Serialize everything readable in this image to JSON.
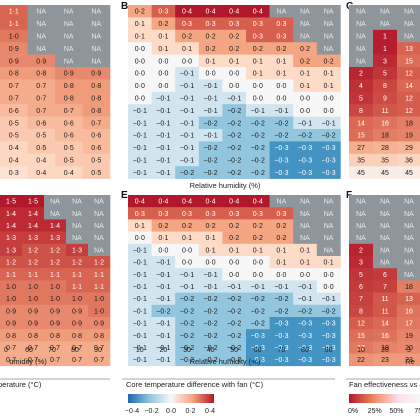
{
  "panel_letters": [
    "B",
    "C",
    "E",
    "F"
  ],
  "axis_titles": {
    "top_center": "Relative humidity (%)",
    "bottom_left": "umidity (%)",
    "bottom_center": "Relative humidity (%)",
    "bottom_right": "Re",
    "left_colorbar": "perature (°C)",
    "center_colorbar": "Core temperature difference with fan (°C)",
    "right_colorbar": "Fan effectiveness vs a"
  },
  "x_ticks_center": [
    "10",
    "20",
    "30",
    "40",
    "50",
    "60",
    "70",
    "80",
    "90"
  ],
  "x_ticks_left": [
    "0",
    "60",
    "70",
    "80",
    "90"
  ],
  "x_ticks_right": [
    "10",
    "20",
    "3"
  ],
  "center_colorbar_ticks": [
    "−0·4",
    "−0·2",
    "0·0",
    "0·2",
    "0·4"
  ],
  "right_colorbar_ticks": [
    "0%",
    "25%",
    "50%",
    "75"
  ],
  "colors": {
    "na": "#8e969c",
    "pos_max": "#b2182b",
    "neg_max": "#2166ac",
    "neutral": "#f7f7f7"
  },
  "chart_data": [
    {
      "panel": "A (partial)",
      "type": "heatmap",
      "rows": [
        [
          "1·1",
          "NA",
          "NA",
          "NA"
        ],
        [
          "1·1",
          "NA",
          "NA",
          "NA"
        ],
        [
          "1·0",
          "NA",
          "NA",
          "NA"
        ],
        [
          "0·9",
          "NA",
          "NA",
          "NA"
        ],
        [
          "0·9",
          "0·9",
          "NA",
          "NA"
        ],
        [
          "0·8",
          "0·8",
          "0·9",
          "0·9"
        ],
        [
          "0·7",
          "0·7",
          "0·8",
          "0·8"
        ],
        [
          "0·7",
          "0·7",
          "0·8",
          "0·8"
        ],
        [
          "0·6",
          "0·7",
          "0·7",
          "0·8"
        ],
        [
          "0·5",
          "0·6",
          "0·6",
          "0·7"
        ],
        [
          "0·5",
          "0·5",
          "0·6",
          "0·6"
        ],
        [
          "0·4",
          "0·5",
          "0·5",
          "0·6"
        ],
        [
          "0·4",
          "0·4",
          "0·5",
          "0·5"
        ],
        [
          "0·3",
          "0·4",
          "0·4",
          "0·5"
        ]
      ]
    },
    {
      "panel": "B",
      "type": "heatmap",
      "x": [
        "10",
        "20",
        "30",
        "40",
        "50",
        "60",
        "70",
        "80",
        "90"
      ],
      "rows": [
        [
          "0·2",
          "0·3",
          "0·4",
          "0·4",
          "0·4",
          "0·4",
          "NA",
          "NA",
          "NA"
        ],
        [
          "0·1",
          "0·2",
          "0·3",
          "0·3",
          "0·3",
          "0·3",
          "0·3",
          "NA",
          "NA"
        ],
        [
          "0·1",
          "0·1",
          "0·2",
          "0·2",
          "0·2",
          "0·3",
          "0·3",
          "NA",
          "NA"
        ],
        [
          "0·0",
          "0·1",
          "0·1",
          "0·2",
          "0·2",
          "0·2",
          "0·2",
          "0·2",
          "NA"
        ],
        [
          "0·0",
          "0·0",
          "0·0",
          "0·1",
          "0·1",
          "0·1",
          "0·1",
          "0·2",
          "0·2"
        ],
        [
          "0·0",
          "0·0",
          "−0·1",
          "0·0",
          "0·0",
          "0·1",
          "0·1",
          "0·1",
          "0·1"
        ],
        [
          "0·0",
          "0·0",
          "−0·1",
          "−0·1",
          "0·0",
          "0·0",
          "0·0",
          "0·1",
          "0·1"
        ],
        [
          "0·0",
          "−0·1",
          "−0·1",
          "−0·1",
          "−0·1",
          "0·0",
          "0·0",
          "0·0",
          "0·0"
        ],
        [
          "−0·1",
          "−0·1",
          "−0·1",
          "−0·1",
          "−0·2",
          "−0·1",
          "−0·1",
          "0·0",
          "0·0"
        ],
        [
          "−0·1",
          "−0·1",
          "−0·1",
          "−0·2",
          "−0·2",
          "−0·2",
          "−0·2",
          "−0·1",
          "−0·1"
        ],
        [
          "−0·1",
          "−0·1",
          "−0·1",
          "−0·1",
          "−0·2",
          "−0·2",
          "−0·2",
          "−0·2",
          "−0·2"
        ],
        [
          "−0·1",
          "−0·1",
          "−0·1",
          "−0·2",
          "−0·2",
          "−0·2",
          "−0·3",
          "−0·3",
          "−0·3"
        ],
        [
          "−0·1",
          "−0·1",
          "−0·1",
          "−0·2",
          "−0·2",
          "−0·2",
          "−0·3",
          "−0·3",
          "−0·3"
        ],
        [
          "−0·1",
          "−0·1",
          "−0·2",
          "−0·2",
          "−0·2",
          "−0·2",
          "−0·3",
          "−0·3",
          "−0·3"
        ]
      ]
    },
    {
      "panel": "C (partial)",
      "type": "heatmap",
      "rows": [
        [
          "NA",
          "NA",
          "NA"
        ],
        [
          "NA",
          "NA",
          "NA"
        ],
        [
          "NA",
          "1",
          "NA"
        ],
        [
          "NA",
          "1",
          "13"
        ],
        [
          "NA",
          "3",
          "15"
        ],
        [
          "2",
          "5",
          "12"
        ],
        [
          "4",
          "8",
          "14"
        ],
        [
          "5",
          "9",
          "12"
        ],
        [
          "8",
          "11",
          "12"
        ],
        [
          "14",
          "16",
          "18"
        ],
        [
          "15",
          "18",
          "19"
        ],
        [
          "27",
          "28",
          "29"
        ],
        [
          "35",
          "35",
          "36"
        ],
        [
          "45",
          "45",
          "45"
        ]
      ]
    },
    {
      "panel": "D (partial)",
      "type": "heatmap",
      "rows": [
        [
          "1·5",
          "1·5",
          "NA",
          "NA",
          "NA"
        ],
        [
          "1·4",
          "1·4",
          "NA",
          "NA",
          "NA"
        ],
        [
          "1·4",
          "1·4",
          "1·4",
          "NA",
          "NA"
        ],
        [
          "1·3",
          "1·3",
          "1·3",
          "NA",
          "NA"
        ],
        [
          "1·3",
          "1·2",
          "1·2",
          "1·3",
          "NA"
        ],
        [
          "1·2",
          "1·2",
          "1·2",
          "1·2",
          "1·2"
        ],
        [
          "1·1",
          "1·1",
          "1·1",
          "1·1",
          "1·1"
        ],
        [
          "1·0",
          "1·0",
          "1·0",
          "1·1",
          "1·1"
        ],
        [
          "1·0",
          "1·0",
          "1·0",
          "1·0",
          "1·0"
        ],
        [
          "0·9",
          "0·9",
          "0·9",
          "0·9",
          "1·0"
        ],
        [
          "0·9",
          "0·9",
          "0·9",
          "0·9",
          "0·9"
        ],
        [
          "0·8",
          "0·8",
          "0·8",
          "0·8",
          "0·8"
        ],
        [
          "0·7",
          "0·7",
          "0·7",
          "0·7",
          "0·7"
        ],
        [
          "0·7",
          "0·7",
          "0·7",
          "0·7",
          "0·7"
        ]
      ]
    },
    {
      "panel": "E",
      "type": "heatmap",
      "x": [
        "10",
        "20",
        "30",
        "40",
        "50",
        "60",
        "70",
        "80",
        "90"
      ],
      "rows": [
        [
          "0·4",
          "0·4",
          "0·4",
          "0·4",
          "0·4",
          "0·4",
          "NA",
          "NA",
          "NA"
        ],
        [
          "0·3",
          "0·3",
          "0·3",
          "0·3",
          "0·3",
          "0·3",
          "0·3",
          "NA",
          "NA"
        ],
        [
          "0·1",
          "0·2",
          "0·2",
          "0·2",
          "0·2",
          "0·2",
          "0·2",
          "NA",
          "NA"
        ],
        [
          "0·0",
          "0·1",
          "0·1",
          "0·1",
          "0·2",
          "0·2",
          "0·2",
          "NA",
          "NA"
        ],
        [
          "−0·1",
          "0·0",
          "0·0",
          "0·1",
          "0·1",
          "0·1",
          "0·1",
          "0·1",
          "NA"
        ],
        [
          "−0·1",
          "−0·1",
          "0·0",
          "0·0",
          "0·0",
          "0·0",
          "0·1",
          "0·1",
          "0·1"
        ],
        [
          "−0·1",
          "−0·1",
          "−0·1",
          "−0·1",
          "0·0",
          "0·0",
          "0·0",
          "0·0",
          "0·0"
        ],
        [
          "−0·1",
          "−0·1",
          "−0·1",
          "−0·1",
          "−0·1",
          "−0·1",
          "−0·1",
          "−0·1",
          "0·0"
        ],
        [
          "−0·1",
          "−0·1",
          "−0·2",
          "−0·2",
          "−0·2",
          "−0·2",
          "−0·2",
          "−0·1",
          "−0·1"
        ],
        [
          "−0·1",
          "−0·2",
          "−0·2",
          "−0·2",
          "−0·2",
          "−0·2",
          "−0·2",
          "−0·2",
          "−0·2"
        ],
        [
          "−0·1",
          "−0·1",
          "−0·2",
          "−0·2",
          "−0·2",
          "−0·2",
          "−0·3",
          "−0·3",
          "−0·3"
        ],
        [
          "−0·1",
          "−0·1",
          "−0·2",
          "−0·2",
          "−0·2",
          "−0·3",
          "−0·3",
          "−0·3",
          "−0·3"
        ],
        [
          "−0·1",
          "−0·1",
          "−0·2",
          "−0·2",
          "−0·2",
          "−0·3",
          "−0·3",
          "−0·3",
          "−0·3"
        ],
        [
          "−0·1",
          "−0·1",
          "−0·2",
          "−0·2",
          "−0·2",
          "−0·3",
          "−0·3",
          "−0·3",
          "−0·3"
        ]
      ]
    },
    {
      "panel": "F (partial)",
      "type": "heatmap",
      "rows": [
        [
          "NA",
          "NA",
          "NA"
        ],
        [
          "NA",
          "NA",
          "NA"
        ],
        [
          "NA",
          "NA",
          "NA"
        ],
        [
          "NA",
          "NA",
          "NA"
        ],
        [
          "2",
          "NA",
          "NA"
        ],
        [
          "3",
          "NA",
          "NA"
        ],
        [
          "5",
          "6",
          "NA"
        ],
        [
          "6",
          "7",
          "18"
        ],
        [
          "7",
          "11",
          "13"
        ],
        [
          "8",
          "11",
          "16"
        ],
        [
          "12",
          "14",
          "17"
        ],
        [
          "15",
          "16",
          "19"
        ],
        [
          "17",
          "19",
          "20"
        ],
        [
          "22",
          "23",
          "23"
        ]
      ]
    }
  ]
}
